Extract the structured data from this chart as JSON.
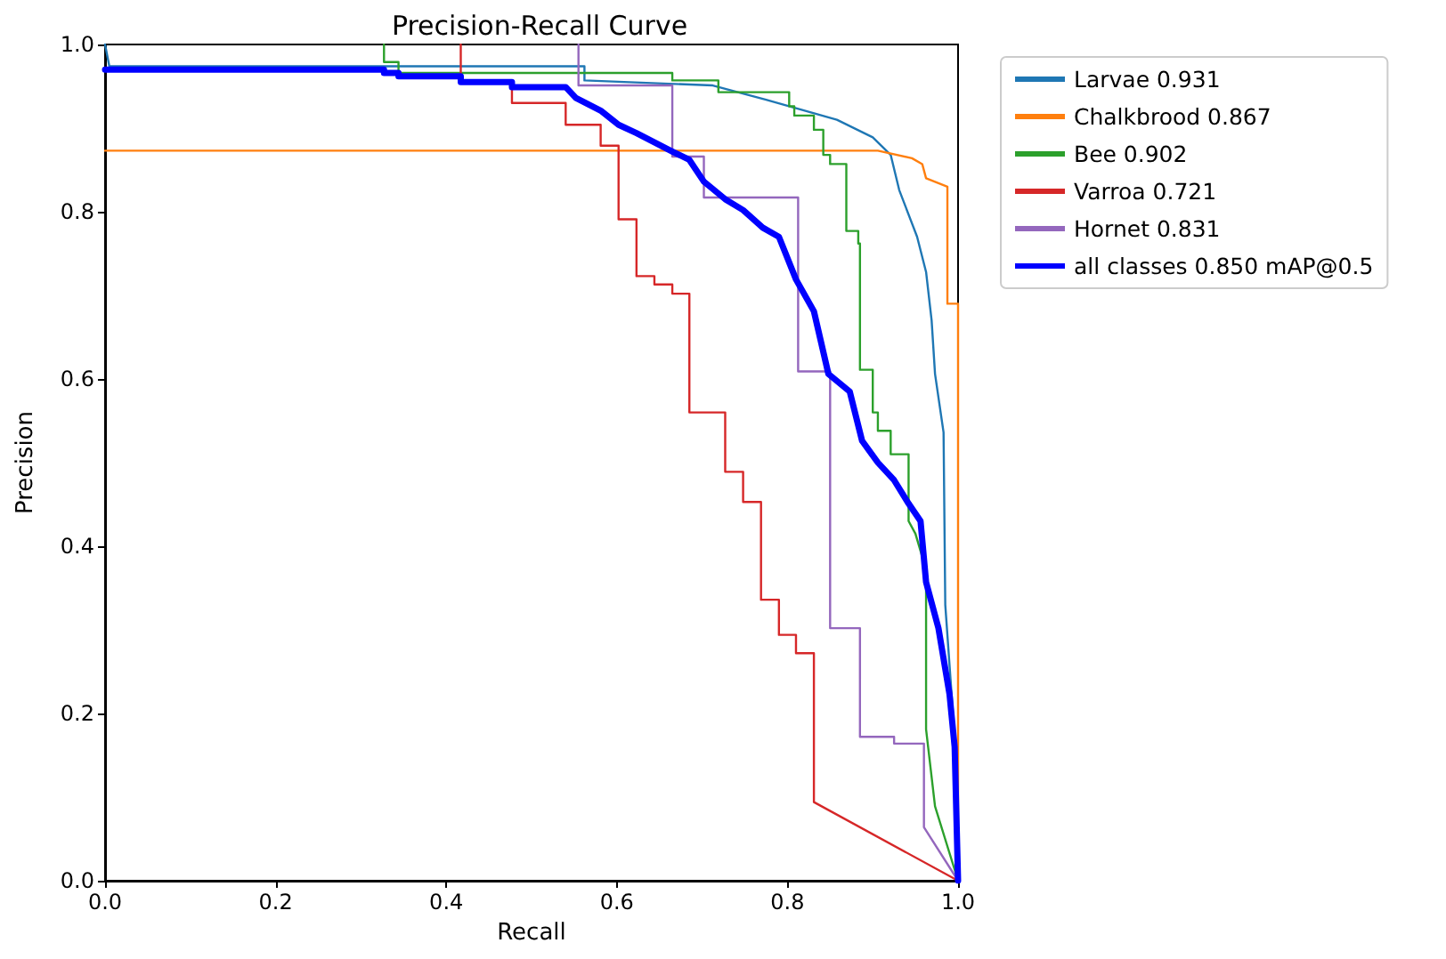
{
  "chart_data": {
    "type": "line",
    "title": "Precision-Recall Curve",
    "xlabel": "Recall",
    "ylabel": "Precision",
    "xlim": [
      0,
      1
    ],
    "ylim": [
      0,
      1
    ],
    "xticks": [
      {
        "value": 0,
        "label": "0.0"
      },
      0.2,
      0.4,
      0.6,
      0.8,
      {
        "value": 1,
        "label": "1.0"
      }
    ],
    "yticks": [
      {
        "value": 0,
        "label": "0.0"
      },
      0.2,
      0.4,
      0.6,
      0.8,
      {
        "value": 1,
        "label": "1.0"
      }
    ],
    "grid": false,
    "legend": "top right",
    "marker": "none",
    "line_style": "solid",
    "series": [
      {
        "name": "Larvae 0.931",
        "color": "#1f77b4",
        "x": [
          0,
          0.005,
          0.562,
          0.562,
          0.7125,
          0.775,
          0.858,
          0.9,
          0.921,
          0.931,
          0.952,
          0.9625,
          0.969,
          0.973,
          0.983,
          0.985,
          0.994,
          1.0
        ],
        "values": [
          1.0,
          0.974,
          0.974,
          0.957,
          0.951,
          0.934,
          0.91,
          0.889,
          0.868,
          0.826,
          0.77,
          0.728,
          0.67,
          0.606,
          0.536,
          0.33,
          0.2,
          0
        ]
      },
      {
        "name": "Chalkbrood 0.867",
        "color": "#ff7f0e",
        "x": [
          0,
          0.906,
          0.946,
          0.958,
          0.9625,
          0.9875,
          0.9875,
          1.0,
          1.0
        ],
        "values": [
          0.873,
          0.873,
          0.864,
          0.857,
          0.84,
          0.83,
          0.69,
          0.69,
          0
        ]
      },
      {
        "name": "Bee 0.902",
        "color": "#2ca02c",
        "x": [
          0.327,
          0.327,
          0.344,
          0.344,
          0.665,
          0.665,
          0.719,
          0.719,
          0.802,
          0.802,
          0.808,
          0.808,
          0.831,
          0.831,
          0.842,
          0.842,
          0.85,
          0.85,
          0.869,
          0.869,
          0.883,
          0.883,
          0.885,
          0.885,
          0.9,
          0.9,
          0.906,
          0.906,
          0.921,
          0.921,
          0.942,
          0.942,
          0.95,
          0.9625,
          0.9625,
          0.973,
          1.0
        ],
        "values": [
          1.0,
          0.979,
          0.979,
          0.966,
          0.966,
          0.957,
          0.957,
          0.943,
          0.943,
          0.926,
          0.926,
          0.915,
          0.915,
          0.898,
          0.898,
          0.868,
          0.868,
          0.857,
          0.857,
          0.777,
          0.777,
          0.762,
          0.762,
          0.611,
          0.611,
          0.56,
          0.56,
          0.538,
          0.538,
          0.51,
          0.51,
          0.43,
          0.415,
          0.372,
          0.181,
          0.089,
          0
        ]
      },
      {
        "name": "Varroa 0.721",
        "color": "#d62728",
        "x": [
          0.417,
          0.417,
          0.477,
          0.477,
          0.54,
          0.54,
          0.581,
          0.581,
          0.602,
          0.602,
          0.623,
          0.623,
          0.644,
          0.644,
          0.665,
          0.665,
          0.685,
          0.685,
          0.727,
          0.727,
          0.748,
          0.748,
          0.769,
          0.769,
          0.79,
          0.79,
          0.81,
          0.81,
          0.831,
          0.831,
          1.0
        ],
        "values": [
          1.0,
          0.957,
          0.957,
          0.93,
          0.93,
          0.904,
          0.904,
          0.879,
          0.879,
          0.791,
          0.791,
          0.723,
          0.723,
          0.713,
          0.713,
          0.702,
          0.702,
          0.56,
          0.56,
          0.489,
          0.489,
          0.453,
          0.453,
          0.336,
          0.336,
          0.294,
          0.294,
          0.272,
          0.272,
          0.094,
          0
        ]
      },
      {
        "name": "Hornet 0.831",
        "color": "#9467bd",
        "x": [
          0.555,
          0.555,
          0.665,
          0.665,
          0.702,
          0.702,
          0.8125,
          0.8125,
          0.85,
          0.85,
          0.885,
          0.885,
          0.925,
          0.925,
          0.96,
          0.96,
          1.0
        ],
        "values": [
          1.0,
          0.951,
          0.951,
          0.866,
          0.866,
          0.817,
          0.817,
          0.609,
          0.609,
          0.302,
          0.302,
          0.172,
          0.172,
          0.164,
          0.164,
          0.064,
          0
        ]
      },
      {
        "name": "all classes 0.850 mAP@0.5",
        "color": "#0000ff",
        "x": [
          0,
          0.327,
          0.327,
          0.344,
          0.344,
          0.417,
          0.417,
          0.477,
          0.477,
          0.54,
          0.552,
          0.581,
          0.602,
          0.623,
          0.665,
          0.685,
          0.702,
          0.727,
          0.748,
          0.771,
          0.79,
          0.81,
          0.831,
          0.848,
          0.873,
          0.8875,
          0.906,
          0.925,
          0.942,
          0.956,
          0.9625,
          0.977,
          0.99,
          0.996,
          1.0
        ],
        "values": [
          0.97,
          0.97,
          0.966,
          0.966,
          0.962,
          0.962,
          0.955,
          0.955,
          0.949,
          0.949,
          0.936,
          0.921,
          0.904,
          0.894,
          0.872,
          0.862,
          0.836,
          0.815,
          0.802,
          0.781,
          0.77,
          0.719,
          0.681,
          0.606,
          0.585,
          0.526,
          0.5,
          0.479,
          0.451,
          0.43,
          0.357,
          0.302,
          0.223,
          0.16,
          0
        ]
      }
    ]
  }
}
